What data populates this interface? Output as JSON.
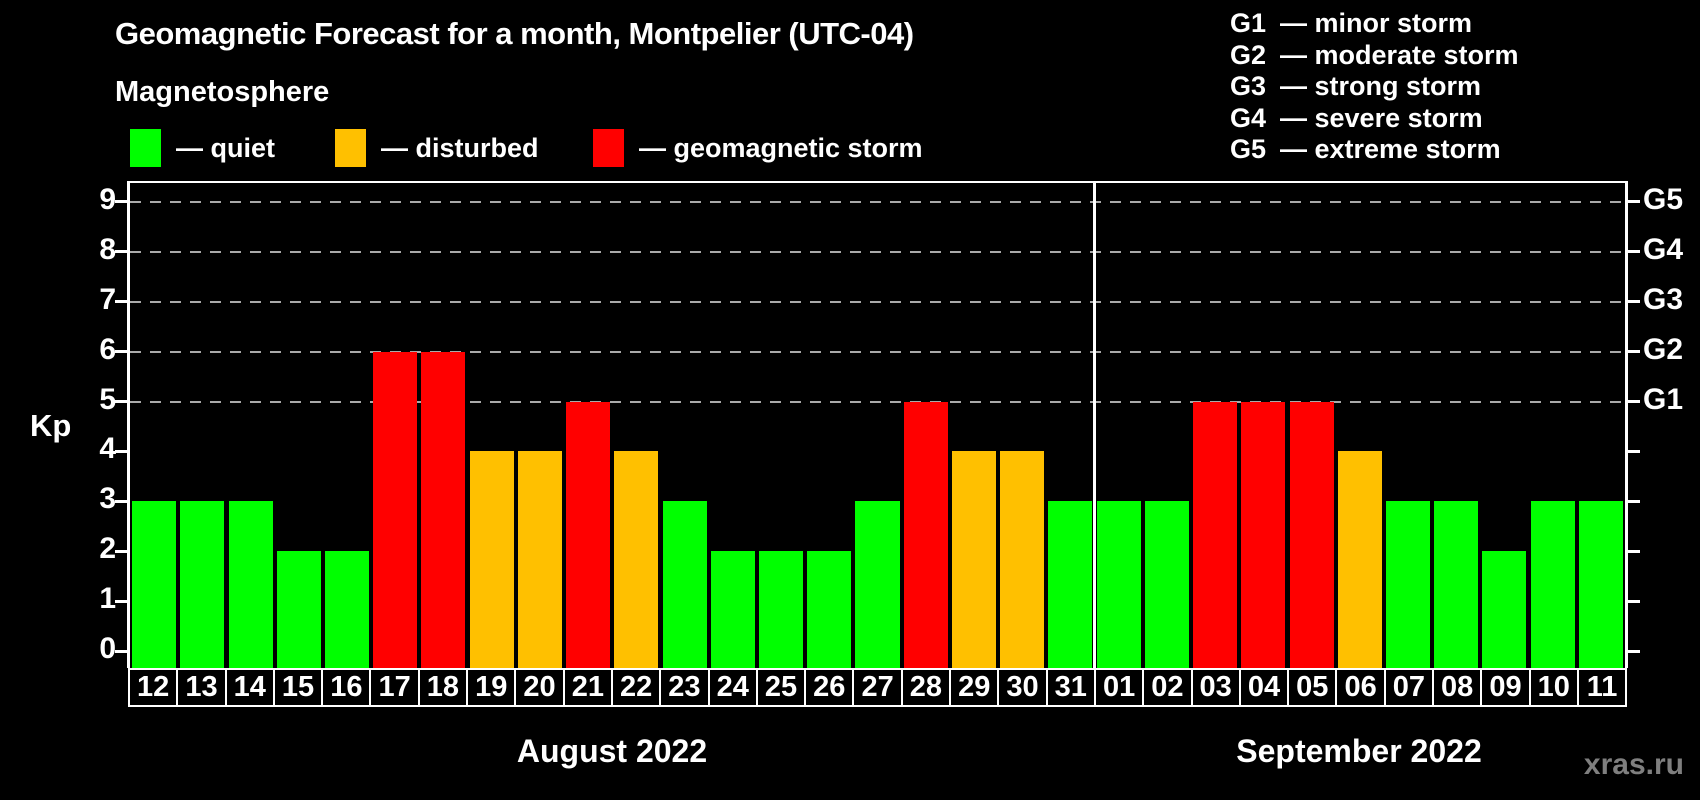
{
  "header": {
    "title": "Geomagnetic Forecast for a month, Montpelier (UTC-04)",
    "legend_title": "Magnetosphere",
    "legend": [
      {
        "status": "quiet",
        "label": "— quiet"
      },
      {
        "status": "disturbed",
        "label": "— disturbed"
      },
      {
        "status": "storm",
        "label": "— geomagnetic storm"
      }
    ],
    "g_legend": [
      {
        "code": "G1",
        "label": "— minor storm"
      },
      {
        "code": "G2",
        "label": "— moderate storm"
      },
      {
        "code": "G3",
        "label": "— strong storm"
      },
      {
        "code": "G4",
        "label": "— severe storm"
      },
      {
        "code": "G5",
        "label": "— extreme storm"
      }
    ]
  },
  "colors": {
    "quiet": "#00ff00",
    "disturbed": "#ffc000",
    "storm": "#ff0000",
    "grid": "#aaaaaa",
    "background": "#000000"
  },
  "axes": {
    "y_label": "Kp",
    "y_ticks": [
      0,
      1,
      2,
      3,
      4,
      5,
      6,
      7,
      8,
      9
    ],
    "right_labels": [
      {
        "level": 5,
        "label": "G1"
      },
      {
        "level": 6,
        "label": "G2"
      },
      {
        "level": 7,
        "label": "G3"
      },
      {
        "level": 8,
        "label": "G4"
      },
      {
        "level": 9,
        "label": "G5"
      }
    ]
  },
  "months": [
    {
      "label": "August 2022",
      "start_index": 0,
      "count": 20
    },
    {
      "label": "September 2022",
      "start_index": 20,
      "count": 11
    }
  ],
  "watermark": "xras.ru",
  "chart_data": {
    "type": "bar",
    "title": "Geomagnetic Forecast for a month, Montpelier (UTC-04)",
    "xlabel": "",
    "ylabel": "Kp",
    "ylim": [
      0,
      9.5
    ],
    "gridlines": [
      5,
      6,
      7,
      8,
      9
    ],
    "grid_style": "dashed, only at storm levels 5-9",
    "legend_position": "top-left",
    "categories": [
      "12",
      "13",
      "14",
      "15",
      "16",
      "17",
      "18",
      "19",
      "20",
      "21",
      "22",
      "23",
      "24",
      "25",
      "26",
      "27",
      "28",
      "29",
      "30",
      "31",
      "01",
      "02",
      "03",
      "04",
      "05",
      "06",
      "07",
      "08",
      "09",
      "10",
      "11"
    ],
    "values": [
      3,
      3,
      3,
      2,
      2,
      6,
      6,
      4,
      4,
      5,
      4,
      3,
      2,
      2,
      2,
      3,
      5,
      4,
      4,
      3,
      3,
      3,
      5,
      5,
      5,
      4,
      3,
      3,
      2,
      3,
      3
    ],
    "statuses": [
      "quiet",
      "quiet",
      "quiet",
      "quiet",
      "quiet",
      "storm",
      "storm",
      "disturbed",
      "disturbed",
      "storm",
      "disturbed",
      "quiet",
      "quiet",
      "quiet",
      "quiet",
      "quiet",
      "storm",
      "disturbed",
      "disturbed",
      "quiet",
      "quiet",
      "quiet",
      "storm",
      "storm",
      "storm",
      "disturbed",
      "quiet",
      "quiet",
      "quiet",
      "quiet",
      "quiet"
    ]
  }
}
